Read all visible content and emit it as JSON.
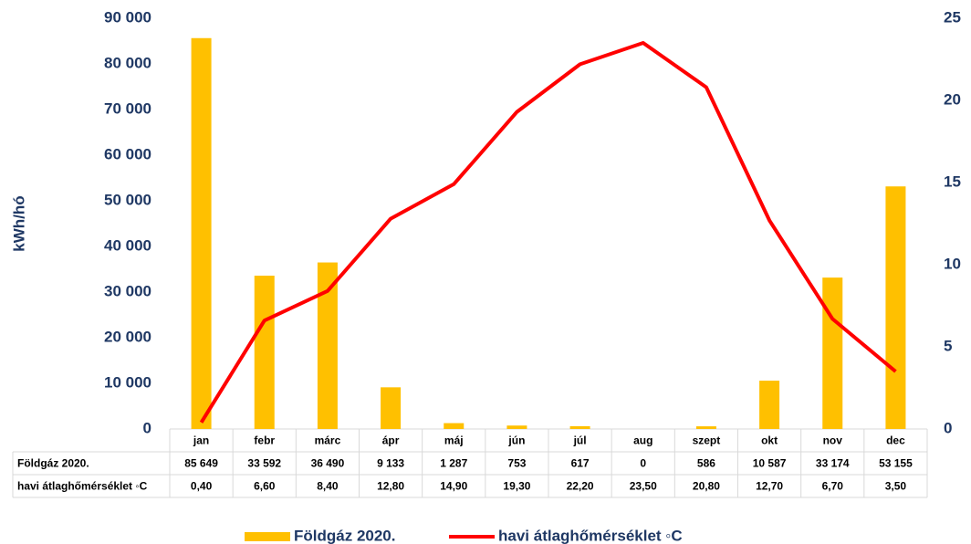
{
  "chart_data": {
    "type": "bar_line",
    "y_axis_label": "kWh/hó",
    "categories": [
      "jan",
      "febr",
      "márc",
      "ápr",
      "máj",
      "jún",
      "júl",
      "aug",
      "szept",
      "okt",
      "nov",
      "dec"
    ],
    "series": [
      {
        "name": "Földgáz 2020.",
        "type": "bar",
        "color": "#ffc000",
        "values": [
          85649,
          33592,
          36490,
          9133,
          1287,
          753,
          617,
          0,
          586,
          10587,
          33174,
          53155
        ],
        "value_labels": [
          "85 649",
          "33 592",
          "36 490",
          "9 133",
          "1 287",
          "753",
          "617",
          "0",
          "586",
          "10 587",
          "33 174",
          "53 155"
        ]
      },
      {
        "name": "havi átlaghőmérséklet ◦C",
        "type": "line",
        "axis": "y2",
        "color": "#ff0000",
        "values": [
          0.4,
          6.6,
          8.4,
          12.8,
          14.9,
          19.3,
          22.2,
          23.5,
          20.8,
          12.7,
          6.7,
          3.5
        ],
        "value_labels": [
          "0,40",
          "6,60",
          "8,40",
          "12,80",
          "14,90",
          "19,30",
          "22,20",
          "23,50",
          "20,80",
          "12,70",
          "6,70",
          "3,50"
        ]
      }
    ],
    "ylim": [
      0,
      90000
    ],
    "yticks": [
      0,
      {
        "value": 10000,
        "label": "10 000"
      },
      {
        "value": 20000,
        "label": "20 000"
      },
      {
        "value": 30000,
        "label": "30 000"
      },
      {
        "value": 40000,
        "label": "40 000"
      },
      {
        "value": 50000,
        "label": "50 000"
      },
      {
        "value": 60000,
        "label": "60 000"
      },
      {
        "value": 70000,
        "label": "70 000"
      },
      {
        "value": 80000,
        "label": "80 000"
      },
      {
        "value": 90000,
        "label": "90 000"
      }
    ],
    "y2lim": [
      0,
      25
    ],
    "y2ticks": [
      0,
      5,
      10,
      15,
      20,
      25
    ],
    "legend": "bottom"
  }
}
